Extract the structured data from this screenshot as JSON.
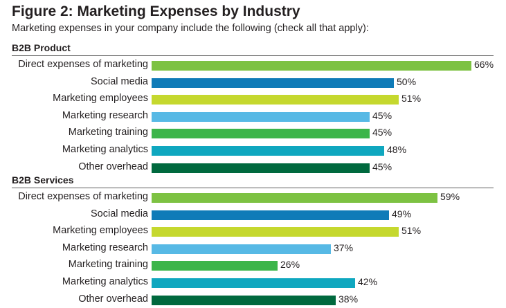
{
  "title": "Figure 2: Marketing Expenses by Industry",
  "subtitle": "Marketing expenses in your company include the following (check all that apply):",
  "colors": [
    "#7dc242",
    "#0f7bb8",
    "#c5d82e",
    "#57b9e5",
    "#3cb54a",
    "#0fa7bf",
    "#00693e"
  ],
  "chart_data": [
    {
      "type": "bar",
      "orientation": "horizontal",
      "title": "B2B Product",
      "categories": [
        "Direct expenses of marketing",
        "Social media",
        "Marketing employees",
        "Marketing research",
        "Marketing training",
        "Marketing analytics",
        "Other overhead"
      ],
      "values": [
        66,
        50,
        51,
        45,
        45,
        48,
        45
      ],
      "value_labels": [
        "66%",
        "50%",
        "51%",
        "45%",
        "45%",
        "48%",
        "45%"
      ],
      "unit": "%",
      "xlim": [
        0,
        100
      ],
      "grid": false
    },
    {
      "type": "bar",
      "orientation": "horizontal",
      "title": "B2B Services",
      "categories": [
        "Direct expenses of marketing",
        "Social media",
        "Marketing employees",
        "Marketing research",
        "Marketing training",
        "Marketing analytics",
        "Other overhead"
      ],
      "values": [
        59,
        49,
        51,
        37,
        26,
        42,
        38
      ],
      "value_labels": [
        "59%",
        "49%",
        "51%",
        "37%",
        "26%",
        "42%",
        "38%"
      ],
      "unit": "%",
      "xlim": [
        0,
        100
      ],
      "grid": false
    }
  ]
}
